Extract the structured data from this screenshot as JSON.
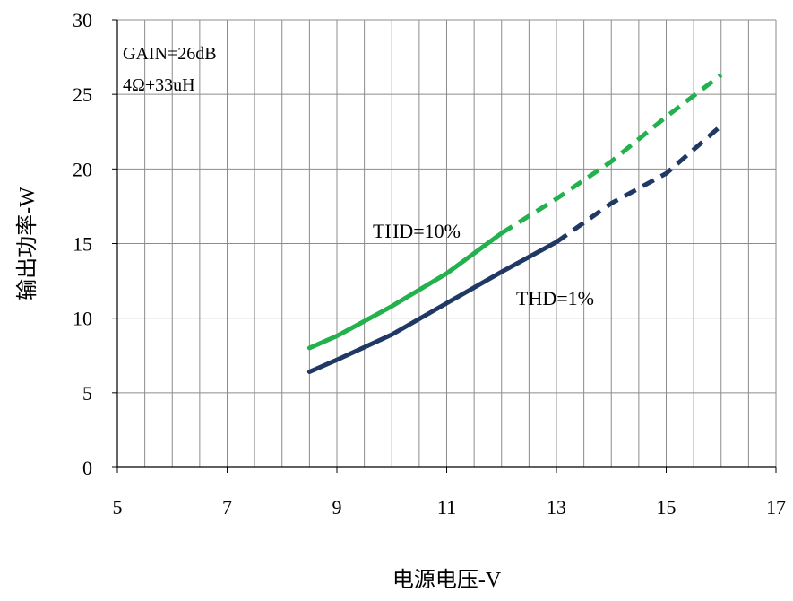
{
  "chart_data": {
    "type": "line",
    "title": "",
    "xlabel": "电源电压-V",
    "ylabel": "输出功率-W",
    "xlim": [
      5,
      17
    ],
    "ylim": [
      0,
      30
    ],
    "x_ticks": [
      "5",
      "7",
      "9",
      "11",
      "13",
      "15",
      "17"
    ],
    "y_ticks": [
      "0",
      "5",
      "10",
      "15",
      "20",
      "25",
      "30"
    ],
    "grid": true,
    "annotations": [
      "GAIN=26dB",
      "4Ω+33uH"
    ],
    "series": [
      {
        "name": "THD=10%",
        "color": "#22b14c",
        "solid": [
          [
            8.5,
            8.0
          ],
          [
            9.0,
            8.8
          ],
          [
            10.0,
            10.8
          ],
          [
            11.0,
            13.0
          ],
          [
            12.0,
            15.7
          ]
        ],
        "dashed": [
          [
            12.0,
            15.7
          ],
          [
            13.0,
            18.0
          ],
          [
            14.0,
            20.5
          ],
          [
            15.0,
            23.5
          ],
          [
            16.0,
            26.3
          ]
        ]
      },
      {
        "name": "THD=1%",
        "color": "#1f3864",
        "solid": [
          [
            8.5,
            6.4
          ],
          [
            9.0,
            7.2
          ],
          [
            10.0,
            8.9
          ],
          [
            11.0,
            11.0
          ],
          [
            12.0,
            13.1
          ],
          [
            13.0,
            15.1
          ]
        ],
        "dashed": [
          [
            13.0,
            15.1
          ],
          [
            14.0,
            17.7
          ],
          [
            15.0,
            19.7
          ],
          [
            16.0,
            22.9
          ]
        ]
      }
    ]
  }
}
